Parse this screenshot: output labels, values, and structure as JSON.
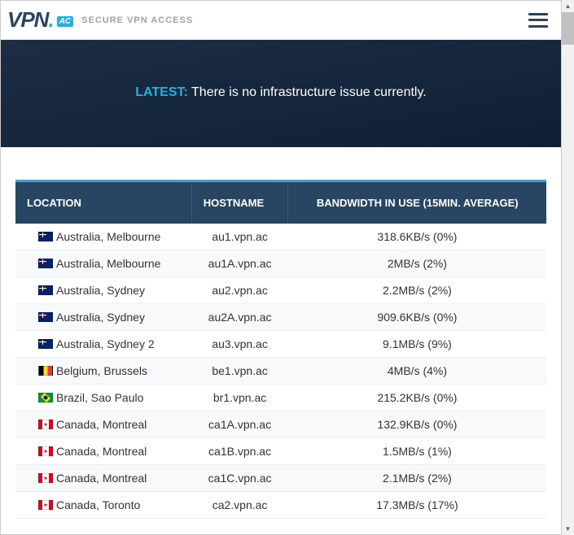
{
  "header": {
    "logo_text": "VPN",
    "logo_dot": ".",
    "logo_badge": "AC",
    "tagline": "SECURE VPN ACCESS"
  },
  "hero": {
    "prefix": "LATEST:",
    "message": " There is no infrastructure issue currently."
  },
  "table": {
    "headers": {
      "location": "LOCATION",
      "hostname": "HOSTNAME",
      "bandwidth": "BANDWIDTH IN USE (15MIN. AVERAGE)"
    },
    "rows": [
      {
        "flag": "au",
        "location": "Australia, Melbourne",
        "hostname": "au1.vpn.ac",
        "bandwidth": "318.6KB/s (0%)"
      },
      {
        "flag": "au",
        "location": "Australia, Melbourne",
        "hostname": "au1A.vpn.ac",
        "bandwidth": "2MB/s (2%)"
      },
      {
        "flag": "au",
        "location": "Australia, Sydney",
        "hostname": "au2.vpn.ac",
        "bandwidth": "2.2MB/s (2%)"
      },
      {
        "flag": "au",
        "location": "Australia, Sydney",
        "hostname": "au2A.vpn.ac",
        "bandwidth": "909.6KB/s (0%)"
      },
      {
        "flag": "au",
        "location": "Australia, Sydney 2",
        "hostname": "au3.vpn.ac",
        "bandwidth": "9.1MB/s (9%)"
      },
      {
        "flag": "be",
        "location": "Belgium, Brussels",
        "hostname": "be1.vpn.ac",
        "bandwidth": "4MB/s (4%)"
      },
      {
        "flag": "br",
        "location": "Brazil, Sao Paulo",
        "hostname": "br1.vpn.ac",
        "bandwidth": "215.2KB/s (0%)"
      },
      {
        "flag": "ca",
        "location": "Canada, Montreal",
        "hostname": "ca1A.vpn.ac",
        "bandwidth": "132.9KB/s (0%)"
      },
      {
        "flag": "ca",
        "location": "Canada, Montreal",
        "hostname": "ca1B.vpn.ac",
        "bandwidth": "1.5MB/s (1%)"
      },
      {
        "flag": "ca",
        "location": "Canada, Montreal",
        "hostname": "ca1C.vpn.ac",
        "bandwidth": "2.1MB/s (2%)"
      },
      {
        "flag": "ca",
        "location": "Canada, Toronto",
        "hostname": "ca2.vpn.ac",
        "bandwidth": "17.3MB/s (17%)"
      }
    ]
  },
  "colors": {
    "accent": "#29aee3",
    "header_bg": "#284564",
    "hero_bg": "#14253c"
  }
}
